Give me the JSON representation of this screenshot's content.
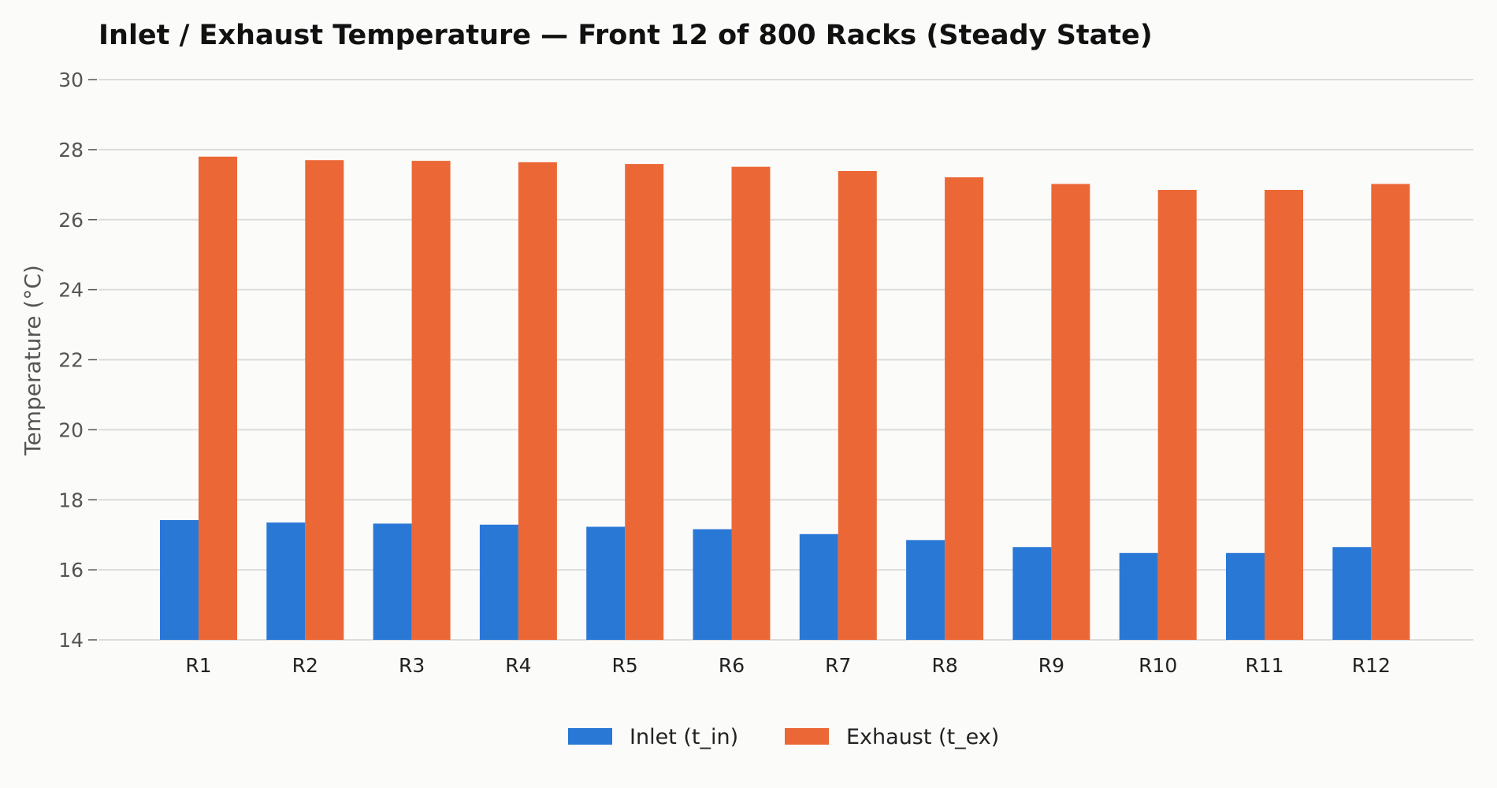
{
  "chart_data": {
    "type": "bar",
    "title": "Inlet / Exhaust Temperature — Front 12 of 800 Racks (Steady State)",
    "xlabel": "",
    "ylabel": "Temperature (°C)",
    "ylim": [
      14,
      30
    ],
    "yticks": [
      14,
      16,
      18,
      20,
      22,
      24,
      26,
      28,
      30
    ],
    "grid": true,
    "legend_position": "bottom-center",
    "categories": [
      "R1",
      "R2",
      "R3",
      "R4",
      "R5",
      "R6",
      "R7",
      "R8",
      "R9",
      "R10",
      "R11",
      "R12"
    ],
    "series": [
      {
        "name": "Inlet (t_in)",
        "color": "#2a78d6",
        "values": [
          17.42,
          17.35,
          17.32,
          17.29,
          17.23,
          17.16,
          17.02,
          16.85,
          16.65,
          16.48,
          16.48,
          16.65
        ]
      },
      {
        "name": "Exhaust (t_ex)",
        "color": "#eb6836",
        "values": [
          27.8,
          27.7,
          27.68,
          27.64,
          27.59,
          27.51,
          27.39,
          27.21,
          27.02,
          26.85,
          26.85,
          27.02
        ]
      }
    ]
  }
}
